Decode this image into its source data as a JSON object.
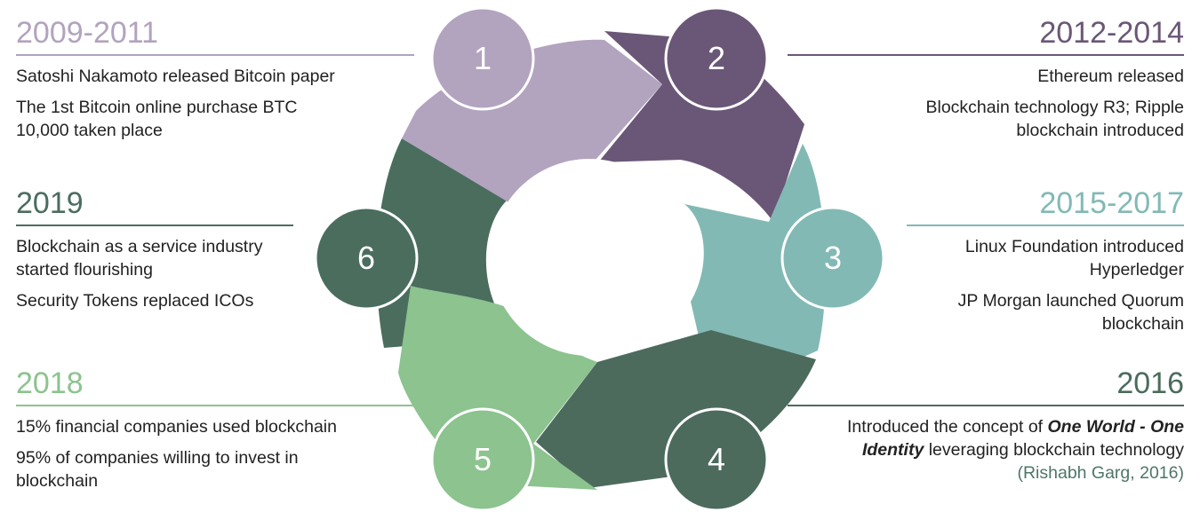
{
  "colors": {
    "p1": "#b2a3bf",
    "p2": "#6a5777",
    "p3": "#82b9b5",
    "p4": "#4c6b5d",
    "p5": "#8cc38f",
    "p6": "#4a6d5e",
    "cite": "#4e7766"
  },
  "wheel": {
    "numbers": [
      "1",
      "2",
      "3",
      "4",
      "5",
      "6"
    ]
  },
  "panels": {
    "p1": {
      "year": "2009-2011",
      "lines": [
        "Satoshi Nakamoto released Bitcoin paper",
        "The 1st Bitcoin online purchase BTC 10,000 taken place"
      ]
    },
    "p2": {
      "year": "2012-2014",
      "lines": [
        "Ethereum released",
        "Blockchain technology R3; Ripple blockchain introduced"
      ]
    },
    "p3": {
      "year": "2015-2017",
      "lines": [
        "Linux Foundation introduced Hyperledger",
        "JP Morgan launched Quorum blockchain"
      ]
    },
    "p6": {
      "year": "2019",
      "lines": [
        "Blockchain as a service industry started flourishing",
        "Security Tokens replaced ICOs"
      ]
    },
    "p5": {
      "year": "2018",
      "lines": [
        "15% financial companies used blockchain",
        "95% of companies willing to invest in blockchain"
      ]
    },
    "p4": {
      "year": "2016",
      "line1_pre": "Introduced the concept of ",
      "line1_emph1": "One World - One",
      "line1_emph2": "Identity",
      "line1_post": " leveraging blockchain technology",
      "citation": "(Rishabh Garg, 2016)"
    }
  }
}
